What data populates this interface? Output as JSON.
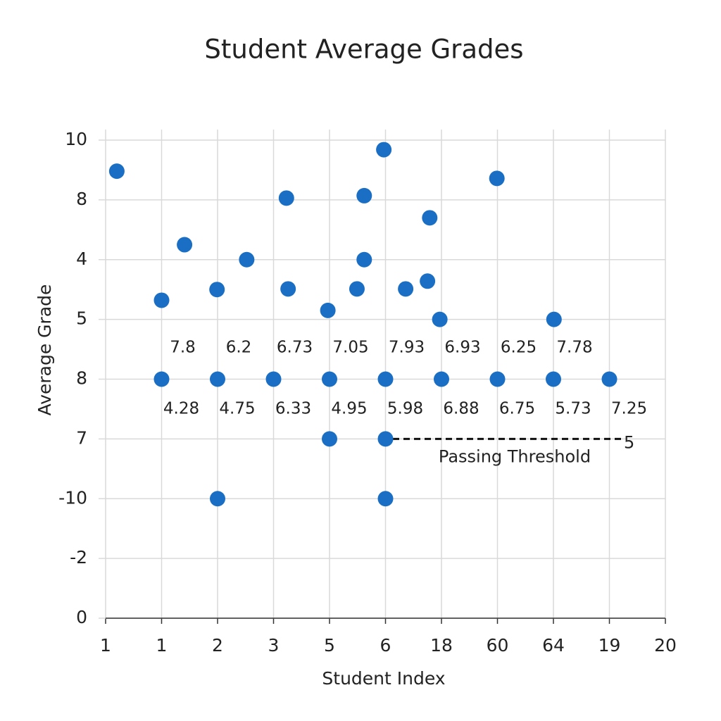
{
  "chart_data": {
    "type": "scatter",
    "title": "Student Average Grades",
    "x_label": "Student Index",
    "y_label": "Average Grade",
    "color": "#1a6fc4",
    "grid": true,
    "x": [
      0.2,
      1,
      1.41,
      1.99,
      2.52,
      3.23,
      3.26,
      3.97,
      4.49,
      4.62,
      4.62,
      4.97,
      5.36,
      5.75,
      5.79,
      5.97,
      6.99,
      8.01,
      1,
      2,
      3,
      4,
      5,
      6,
      7,
      8,
      9,
      4,
      5,
      2,
      5
    ],
    "values": [
      7.48,
      5.32,
      6.25,
      5.5,
      6.0,
      7.03,
      5.51,
      5.15,
      5.51,
      7.07,
      6.0,
      7.84,
      5.51,
      5.64,
      6.7,
      5.0,
      7.36,
      5.0,
      4,
      4,
      4,
      4,
      4,
      4,
      4,
      4,
      4,
      3,
      3,
      2,
      2
    ],
    "xlim": [
      0,
      10
    ],
    "ylim": [
      0,
      8
    ],
    "xticks": [
      {
        "value": 0,
        "label": "1"
      },
      1,
      2,
      3,
      {
        "value": 4,
        "label": "5"
      },
      {
        "value": 5,
        "label": "6"
      },
      {
        "value": 6,
        "label": "18"
      },
      {
        "value": 7,
        "label": "60"
      },
      {
        "value": 8,
        "label": "64"
      },
      {
        "value": 9,
        "label": "19"
      },
      {
        "value": 10,
        "label": "20"
      }
    ],
    "yticks": [
      0,
      {
        "value": 1,
        "label": "-2"
      },
      {
        "value": 2,
        "label": "-10"
      },
      {
        "value": 3,
        "label": "7"
      },
      {
        "value": 4,
        "label": "8"
      },
      {
        "value": 5,
        "label": "5"
      },
      {
        "value": 6,
        "label": "4"
      },
      {
        "value": 7,
        "label": "8"
      },
      {
        "value": 8,
        "label": "10"
      }
    ],
    "upper_annotations": [
      "7.8",
      "6.2",
      "6.73",
      "7.05",
      "7.93",
      "6.93",
      "6.25",
      "7.78"
    ],
    "lower_annotations": [
      "4.28",
      "4.75",
      "6.33",
      "4.95",
      "5.98",
      "6.88",
      "6.75",
      "5.73",
      "7.25"
    ],
    "threshold": {
      "value": 3,
      "label": "Passing Threshold",
      "end_label": "5"
    }
  }
}
